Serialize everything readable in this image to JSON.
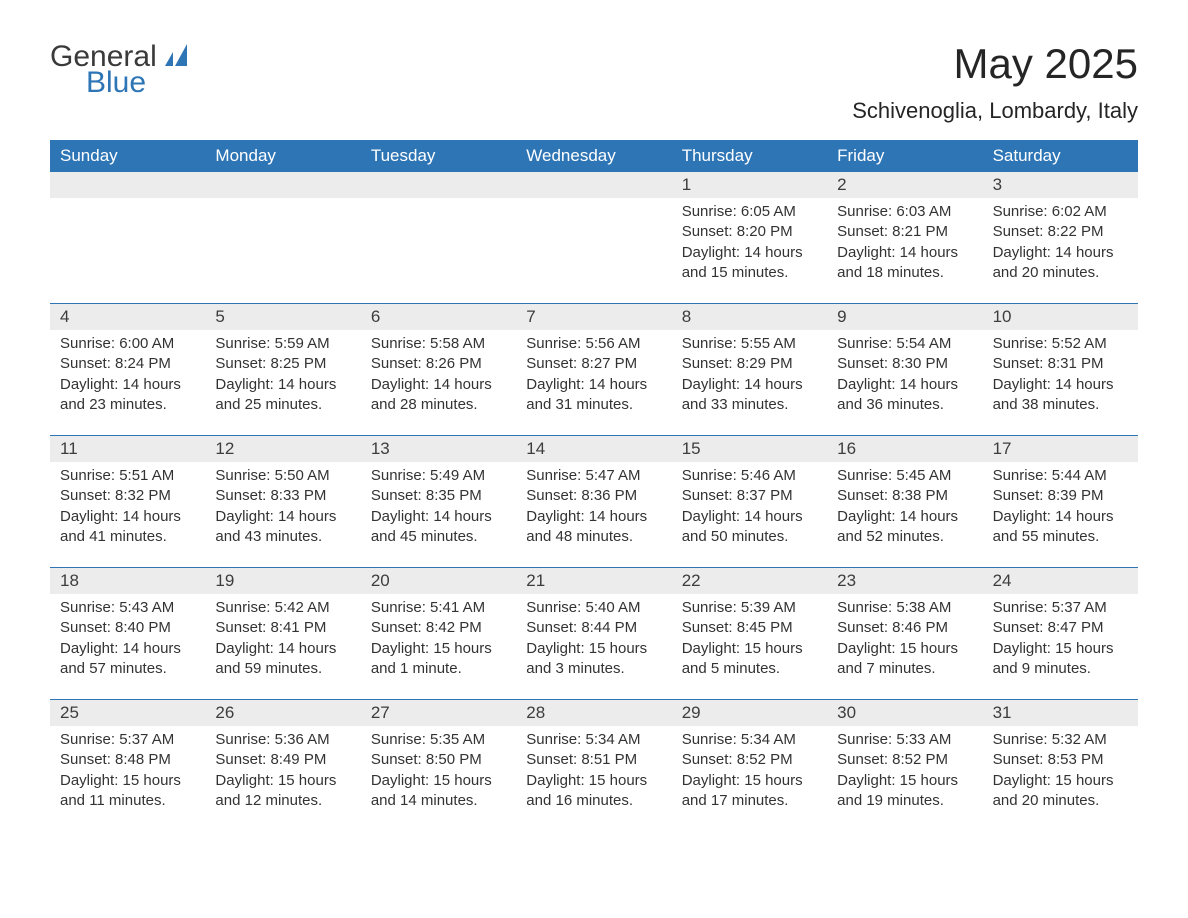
{
  "logo": {
    "text1": "General",
    "text2": "Blue",
    "accent_color": "#2e75b6"
  },
  "title": {
    "month_year": "May 2025",
    "location": "Schivenoglia, Lombardy, Italy"
  },
  "calendar": {
    "type": "table",
    "header_bg": "#2e75b6",
    "header_fg": "#ffffff",
    "row_divider_color": "#2e75b6",
    "daynum_bg": "#ececec",
    "text_color": "#333333",
    "background_color": "#ffffff",
    "columns": [
      "Sunday",
      "Monday",
      "Tuesday",
      "Wednesday",
      "Thursday",
      "Friday",
      "Saturday"
    ],
    "weeks": [
      [
        null,
        null,
        null,
        null,
        {
          "n": "1",
          "sunrise": "6:05 AM",
          "sunset": "8:20 PM",
          "daylight": "14 hours and 15 minutes."
        },
        {
          "n": "2",
          "sunrise": "6:03 AM",
          "sunset": "8:21 PM",
          "daylight": "14 hours and 18 minutes."
        },
        {
          "n": "3",
          "sunrise": "6:02 AM",
          "sunset": "8:22 PM",
          "daylight": "14 hours and 20 minutes."
        }
      ],
      [
        {
          "n": "4",
          "sunrise": "6:00 AM",
          "sunset": "8:24 PM",
          "daylight": "14 hours and 23 minutes."
        },
        {
          "n": "5",
          "sunrise": "5:59 AM",
          "sunset": "8:25 PM",
          "daylight": "14 hours and 25 minutes."
        },
        {
          "n": "6",
          "sunrise": "5:58 AM",
          "sunset": "8:26 PM",
          "daylight": "14 hours and 28 minutes."
        },
        {
          "n": "7",
          "sunrise": "5:56 AM",
          "sunset": "8:27 PM",
          "daylight": "14 hours and 31 minutes."
        },
        {
          "n": "8",
          "sunrise": "5:55 AM",
          "sunset": "8:29 PM",
          "daylight": "14 hours and 33 minutes."
        },
        {
          "n": "9",
          "sunrise": "5:54 AM",
          "sunset": "8:30 PM",
          "daylight": "14 hours and 36 minutes."
        },
        {
          "n": "10",
          "sunrise": "5:52 AM",
          "sunset": "8:31 PM",
          "daylight": "14 hours and 38 minutes."
        }
      ],
      [
        {
          "n": "11",
          "sunrise": "5:51 AM",
          "sunset": "8:32 PM",
          "daylight": "14 hours and 41 minutes."
        },
        {
          "n": "12",
          "sunrise": "5:50 AM",
          "sunset": "8:33 PM",
          "daylight": "14 hours and 43 minutes."
        },
        {
          "n": "13",
          "sunrise": "5:49 AM",
          "sunset": "8:35 PM",
          "daylight": "14 hours and 45 minutes."
        },
        {
          "n": "14",
          "sunrise": "5:47 AM",
          "sunset": "8:36 PM",
          "daylight": "14 hours and 48 minutes."
        },
        {
          "n": "15",
          "sunrise": "5:46 AM",
          "sunset": "8:37 PM",
          "daylight": "14 hours and 50 minutes."
        },
        {
          "n": "16",
          "sunrise": "5:45 AM",
          "sunset": "8:38 PM",
          "daylight": "14 hours and 52 minutes."
        },
        {
          "n": "17",
          "sunrise": "5:44 AM",
          "sunset": "8:39 PM",
          "daylight": "14 hours and 55 minutes."
        }
      ],
      [
        {
          "n": "18",
          "sunrise": "5:43 AM",
          "sunset": "8:40 PM",
          "daylight": "14 hours and 57 minutes."
        },
        {
          "n": "19",
          "sunrise": "5:42 AM",
          "sunset": "8:41 PM",
          "daylight": "14 hours and 59 minutes."
        },
        {
          "n": "20",
          "sunrise": "5:41 AM",
          "sunset": "8:42 PM",
          "daylight": "15 hours and 1 minute."
        },
        {
          "n": "21",
          "sunrise": "5:40 AM",
          "sunset": "8:44 PM",
          "daylight": "15 hours and 3 minutes."
        },
        {
          "n": "22",
          "sunrise": "5:39 AM",
          "sunset": "8:45 PM",
          "daylight": "15 hours and 5 minutes."
        },
        {
          "n": "23",
          "sunrise": "5:38 AM",
          "sunset": "8:46 PM",
          "daylight": "15 hours and 7 minutes."
        },
        {
          "n": "24",
          "sunrise": "5:37 AM",
          "sunset": "8:47 PM",
          "daylight": "15 hours and 9 minutes."
        }
      ],
      [
        {
          "n": "25",
          "sunrise": "5:37 AM",
          "sunset": "8:48 PM",
          "daylight": "15 hours and 11 minutes."
        },
        {
          "n": "26",
          "sunrise": "5:36 AM",
          "sunset": "8:49 PM",
          "daylight": "15 hours and 12 minutes."
        },
        {
          "n": "27",
          "sunrise": "5:35 AM",
          "sunset": "8:50 PM",
          "daylight": "15 hours and 14 minutes."
        },
        {
          "n": "28",
          "sunrise": "5:34 AM",
          "sunset": "8:51 PM",
          "daylight": "15 hours and 16 minutes."
        },
        {
          "n": "29",
          "sunrise": "5:34 AM",
          "sunset": "8:52 PM",
          "daylight": "15 hours and 17 minutes."
        },
        {
          "n": "30",
          "sunrise": "5:33 AM",
          "sunset": "8:52 PM",
          "daylight": "15 hours and 19 minutes."
        },
        {
          "n": "31",
          "sunrise": "5:32 AM",
          "sunset": "8:53 PM",
          "daylight": "15 hours and 20 minutes."
        }
      ]
    ]
  },
  "labels": {
    "sunrise": "Sunrise: ",
    "sunset": "Sunset: ",
    "daylight": "Daylight: "
  }
}
